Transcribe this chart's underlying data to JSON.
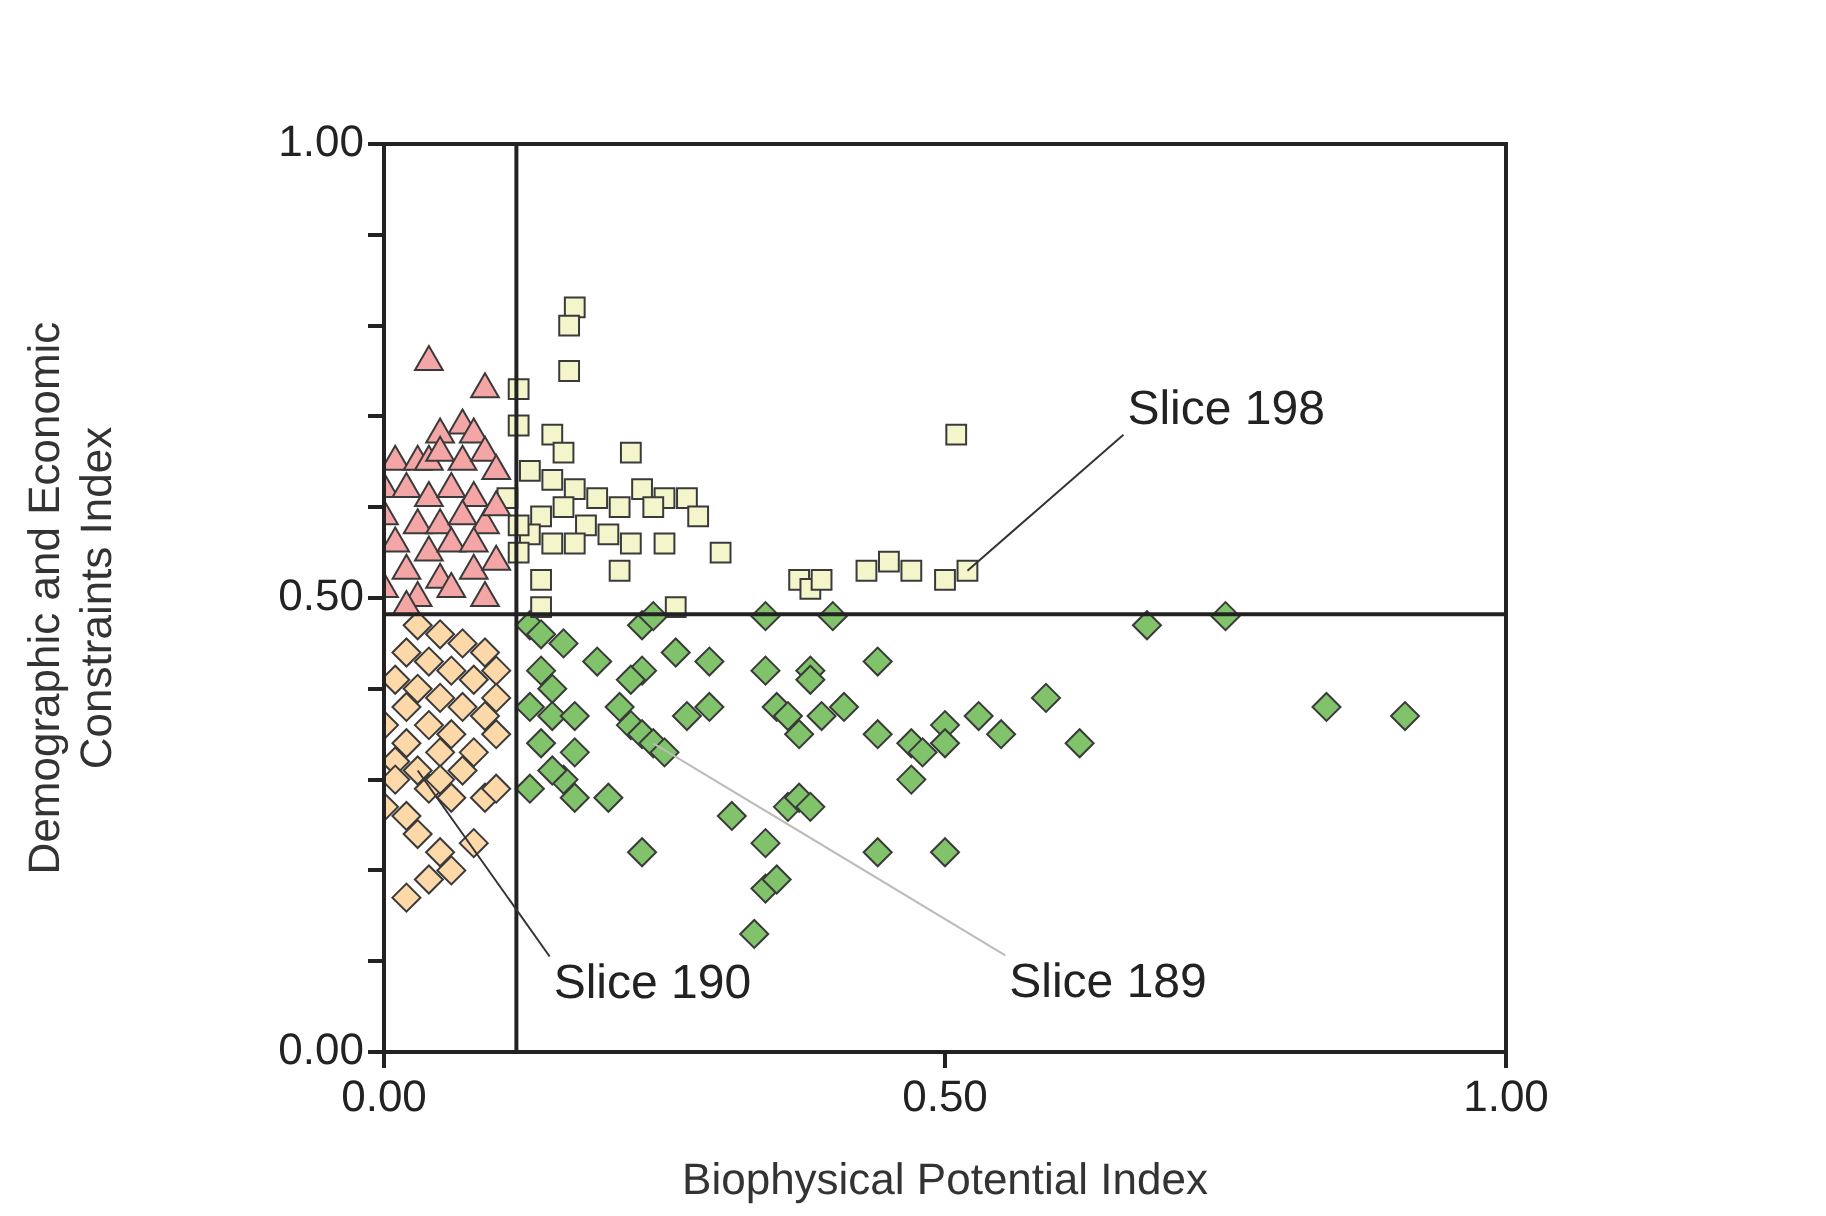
{
  "chart_data": {
    "type": "scatter",
    "xlabel": "Biophysical Potential Index",
    "ylabel": "Demographic and Economic Constraints Index",
    "xlim": [
      0,
      1
    ],
    "ylim": [
      0,
      1
    ],
    "xticks": [
      {
        "value": 0,
        "label": "0.00"
      },
      {
        "value": 0.5,
        "label": "0.50"
      },
      {
        "value": 1,
        "label": "1.00"
      }
    ],
    "yticks": [
      {
        "value": 0,
        "label": "0.00"
      },
      {
        "value": 0.1,
        "label": null
      },
      {
        "value": 0.2,
        "label": null
      },
      {
        "value": 0.3,
        "label": null
      },
      {
        "value": 0.4,
        "label": null
      },
      {
        "value": 0.5,
        "label": "0.50"
      },
      {
        "value": 0.6,
        "label": null
      },
      {
        "value": 0.7,
        "label": null
      },
      {
        "value": 0.8,
        "label": null
      },
      {
        "value": 0.9,
        "label": null
      },
      {
        "value": 1,
        "label": "1.00"
      }
    ],
    "grid": false,
    "legend": false,
    "ref_lines": [
      {
        "axis": "x",
        "value": 0.118,
        "color": "#222222"
      },
      {
        "axis": "y",
        "value": 0.482,
        "color": "#222222"
      }
    ],
    "annotations": [
      {
        "text": "Slice 198",
        "x": 0.52,
        "y": 0.53
      },
      {
        "text": "Slice 190",
        "x": 0.03,
        "y": 0.31
      },
      {
        "text": "Slice 189",
        "x": 0.24,
        "y": 0.34
      }
    ],
    "series": [
      {
        "color": "#f4a6a6",
        "marker": "triangle",
        "x": [
          0.04,
          0.09,
          0.07,
          0.05,
          0.08,
          0.01,
          0.03,
          0.04,
          0.05,
          0.07,
          0.09,
          0.0,
          0.02,
          0.04,
          0.06,
          0.08,
          0.1,
          0.03,
          0.05,
          0.07,
          0.09,
          0.0,
          0.01,
          0.04,
          0.06,
          0.02,
          0.05,
          0.08,
          0.1,
          0.0,
          0.03,
          0.06,
          0.09,
          0.02,
          0.1,
          0.08
        ],
        "values": [
          0.76,
          0.73,
          0.69,
          0.68,
          0.68,
          0.65,
          0.65,
          0.65,
          0.66,
          0.65,
          0.66,
          0.62,
          0.62,
          0.61,
          0.62,
          0.61,
          0.64,
          0.58,
          0.58,
          0.59,
          0.58,
          0.59,
          0.56,
          0.55,
          0.56,
          0.53,
          0.52,
          0.53,
          0.54,
          0.51,
          0.5,
          0.51,
          0.5,
          0.49,
          0.6,
          0.56
        ]
      },
      {
        "color": "#f5f5cc",
        "marker": "square",
        "x": [
          0.17,
          0.165,
          0.165,
          0.12,
          0.12,
          0.15,
          0.16,
          0.22,
          0.13,
          0.15,
          0.17,
          0.19,
          0.21,
          0.23,
          0.25,
          0.24,
          0.27,
          0.14,
          0.16,
          0.18,
          0.2,
          0.13,
          0.15,
          0.17,
          0.28,
          0.22,
          0.25,
          0.3,
          0.21,
          0.14,
          0.37,
          0.38,
          0.43,
          0.45,
          0.47,
          0.5,
          0.52,
          0.51,
          0.14,
          0.26,
          0.39,
          0.11,
          0.12,
          0.12
        ],
        "values": [
          0.82,
          0.8,
          0.75,
          0.73,
          0.69,
          0.68,
          0.66,
          0.66,
          0.64,
          0.63,
          0.62,
          0.61,
          0.6,
          0.62,
          0.61,
          0.6,
          0.61,
          0.59,
          0.6,
          0.58,
          0.57,
          0.57,
          0.56,
          0.56,
          0.59,
          0.56,
          0.56,
          0.55,
          0.53,
          0.52,
          0.52,
          0.51,
          0.53,
          0.54,
          0.53,
          0.52,
          0.53,
          0.68,
          0.49,
          0.49,
          0.52,
          0.61,
          0.58,
          0.55
        ]
      },
      {
        "color": "#fdd9a9",
        "marker": "diamond",
        "x": [
          0.03,
          0.05,
          0.07,
          0.02,
          0.04,
          0.09,
          0.06,
          0.01,
          0.03,
          0.08,
          0.1,
          0.05,
          0.02,
          0.07,
          0.09,
          0.0,
          0.04,
          0.06,
          0.1,
          0.02,
          0.05,
          0.08,
          0.01,
          0.03,
          0.07,
          0.04,
          0.06,
          0.09,
          0.0,
          0.02,
          0.1,
          0.03,
          0.05,
          0.08,
          0.04,
          0.06,
          0.02,
          0.01,
          0.05,
          0.1
        ],
        "values": [
          0.47,
          0.46,
          0.45,
          0.44,
          0.43,
          0.44,
          0.42,
          0.41,
          0.4,
          0.41,
          0.42,
          0.39,
          0.38,
          0.38,
          0.37,
          0.36,
          0.36,
          0.35,
          0.35,
          0.34,
          0.33,
          0.33,
          0.32,
          0.31,
          0.31,
          0.29,
          0.28,
          0.28,
          0.27,
          0.26,
          0.29,
          0.24,
          0.22,
          0.23,
          0.19,
          0.2,
          0.17,
          0.3,
          0.3,
          0.39
        ]
      },
      {
        "color": "#80c36b",
        "marker": "diamond",
        "x": [
          0.13,
          0.14,
          0.16,
          0.19,
          0.23,
          0.24,
          0.26,
          0.29,
          0.34,
          0.4,
          0.68,
          0.75,
          0.14,
          0.15,
          0.13,
          0.15,
          0.17,
          0.14,
          0.17,
          0.22,
          0.23,
          0.24,
          0.25,
          0.27,
          0.29,
          0.13,
          0.16,
          0.17,
          0.15,
          0.2,
          0.23,
          0.22,
          0.21,
          0.34,
          0.35,
          0.36,
          0.37,
          0.38,
          0.38,
          0.39,
          0.41,
          0.44,
          0.44,
          0.47,
          0.48,
          0.47,
          0.5,
          0.5,
          0.53,
          0.55,
          0.59,
          0.62,
          0.84,
          0.91,
          0.36,
          0.37,
          0.38,
          0.31,
          0.44,
          0.5,
          0.34,
          0.34,
          0.35,
          0.33,
          0.23
        ],
        "values": [
          0.47,
          0.46,
          0.45,
          0.43,
          0.47,
          0.48,
          0.44,
          0.43,
          0.48,
          0.48,
          0.47,
          0.48,
          0.42,
          0.4,
          0.38,
          0.37,
          0.37,
          0.34,
          0.33,
          0.36,
          0.35,
          0.34,
          0.33,
          0.37,
          0.38,
          0.29,
          0.3,
          0.28,
          0.31,
          0.28,
          0.42,
          0.41,
          0.38,
          0.42,
          0.38,
          0.37,
          0.35,
          0.42,
          0.41,
          0.37,
          0.38,
          0.43,
          0.35,
          0.34,
          0.33,
          0.3,
          0.36,
          0.34,
          0.37,
          0.35,
          0.39,
          0.34,
          0.38,
          0.37,
          0.27,
          0.28,
          0.27,
          0.26,
          0.22,
          0.22,
          0.23,
          0.18,
          0.19,
          0.13,
          0.22
        ]
      }
    ]
  }
}
